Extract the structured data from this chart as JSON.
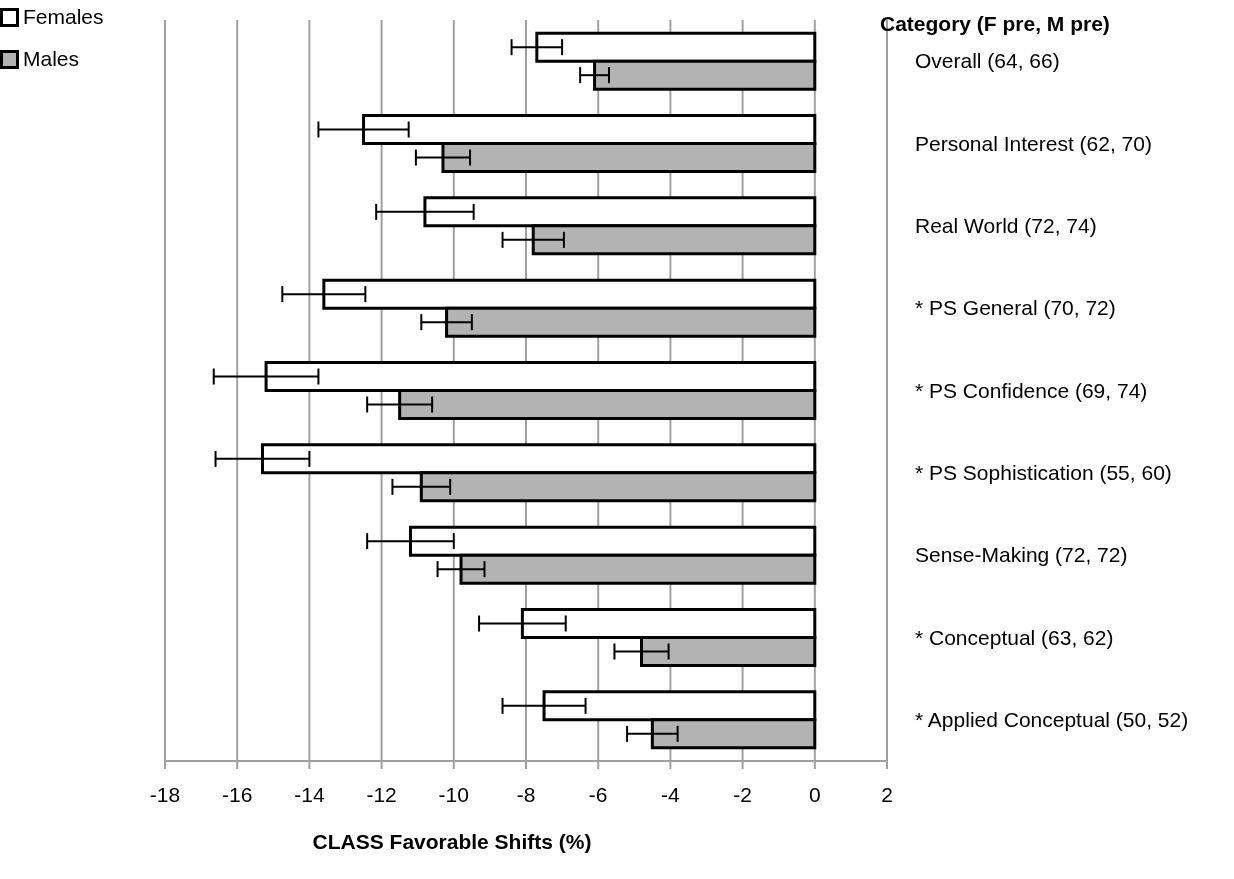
{
  "chart_data": {
    "type": "bar",
    "orientation": "horizontal",
    "xlabel": "CLASS Favorable Shifts (%)",
    "ylabel": "Category (F pre, M pre)",
    "categories": [
      "Overall (64, 66)",
      "Personal Interest (62, 70)",
      "Real World (72, 74)",
      "* PS General (70, 72)",
      "* PS Confidence (69, 74)",
      "* PS Sophistication (55, 60)",
      "Sense-Making (72, 72)",
      "* Conceptual (63, 62)",
      "* Applied Conceptual (50, 52)"
    ],
    "series": [
      {
        "name": "Females",
        "color": "#ffffff",
        "values": [
          -7.7,
          -12.5,
          -10.8,
          -13.6,
          -15.2,
          -15.3,
          -11.2,
          -8.1,
          -7.5
        ],
        "errors": [
          0.7,
          1.25,
          1.35,
          1.15,
          1.45,
          1.3,
          1.2,
          1.2,
          1.15
        ]
      },
      {
        "name": "Males",
        "color": "#b3b3b3",
        "values": [
          -6.1,
          -10.3,
          -7.8,
          -10.2,
          -11.5,
          -10.9,
          -9.8,
          -4.8,
          -4.5
        ],
        "errors": [
          0.4,
          0.75,
          0.85,
          0.7,
          0.9,
          0.8,
          0.65,
          0.75,
          0.7
        ]
      }
    ],
    "xlim": [
      -18,
      2
    ],
    "xticks": [
      -18,
      -16,
      -14,
      -12,
      -10,
      -8,
      -6,
      -4,
      -2,
      0,
      2
    ],
    "grid": "x",
    "legend": "top left"
  }
}
